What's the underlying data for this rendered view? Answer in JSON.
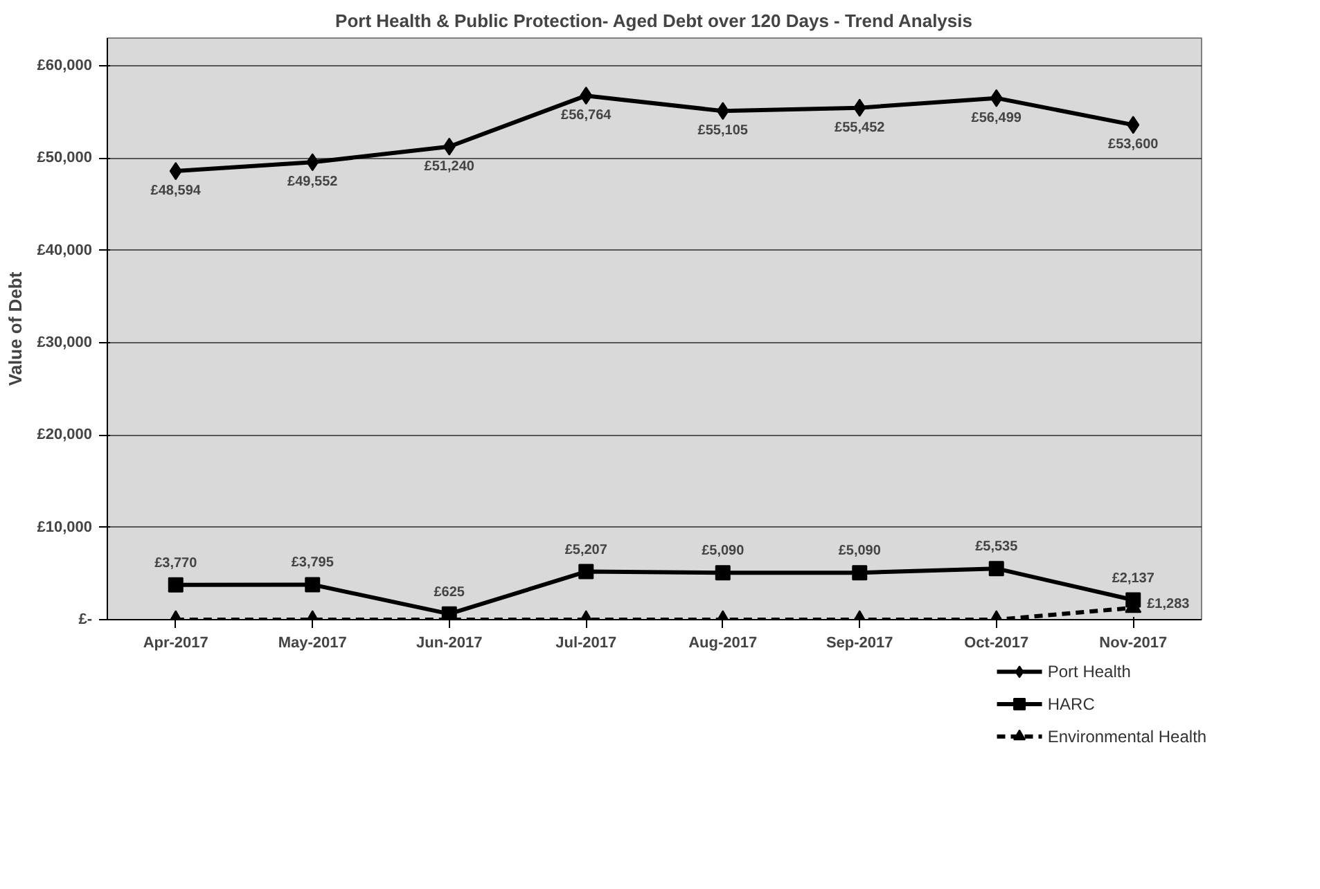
{
  "chart_data": {
    "type": "line",
    "title": "Port Health & Public Protection- Aged Debt over 120 Days - Trend Analysis",
    "ylabel": "Value of Debt",
    "categories": [
      "Apr-2017",
      "May-2017",
      "Jun-2017",
      "Jul-2017",
      "Aug-2017",
      "Sep-2017",
      "Oct-2017",
      "Nov-2017"
    ],
    "series": [
      {
        "name": "Port Health",
        "color": "#000000",
        "marker": "diamond",
        "line_style": "solid",
        "values": [
          48594,
          49552,
          51240,
          56764,
          55105,
          55452,
          56499,
          53600
        ],
        "value_labels": [
          "£48,594",
          "£49,552",
          "£51,240",
          "£56,764",
          "£55,105",
          "£55,452",
          "£56,499",
          "£53,600"
        ]
      },
      {
        "name": "HARC",
        "color": "#000000",
        "marker": "square",
        "line_style": "solid",
        "values": [
          3770,
          3795,
          625,
          5207,
          5090,
          5090,
          5535,
          2137
        ],
        "value_labels": [
          "£3,770",
          "£3,795",
          "£625",
          "£5,207",
          "£5,090",
          "£5,090",
          "£5,535",
          "£2,137"
        ]
      },
      {
        "name": "Environmental Health",
        "color": "#000000",
        "marker": "triangle",
        "line_style": "dashed",
        "values": [
          0,
          0,
          0,
          0,
          0,
          0,
          0,
          1283
        ],
        "value_labels": [
          null,
          null,
          null,
          null,
          null,
          null,
          null,
          "£1,283"
        ]
      }
    ],
    "ylim": [
      0,
      63000
    ],
    "yticks": [
      {
        "value": 0,
        "label": "£-"
      },
      {
        "value": 10000,
        "label": "£10,000"
      },
      {
        "value": 20000,
        "label": "£20,000"
      },
      {
        "value": 30000,
        "label": "£30,000"
      },
      {
        "value": 40000,
        "label": "£40,000"
      },
      {
        "value": 50000,
        "label": "£50,000"
      },
      {
        "value": 60000,
        "label": "£60,000"
      }
    ],
    "grid": "y",
    "legend": "bottom right"
  }
}
